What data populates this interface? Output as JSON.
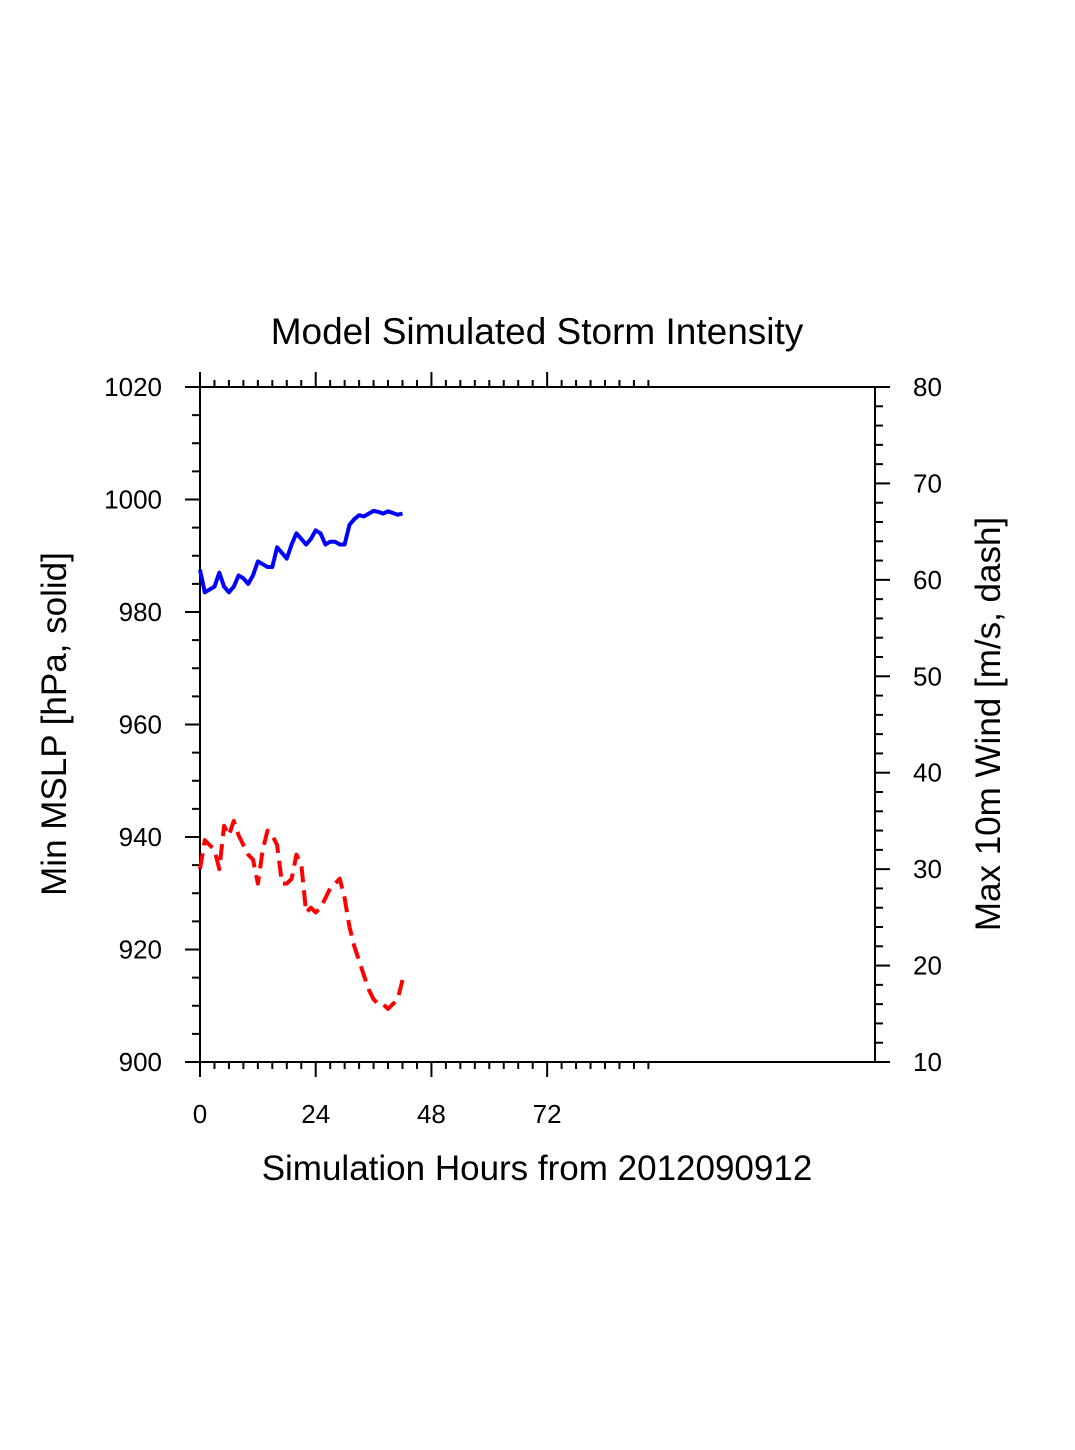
{
  "chart_data": {
    "type": "line",
    "title": "Model Simulated Storm Intensity",
    "xlabel": "Simulation Hours from 2012090912",
    "ylabel_left": "Min MSLP  [hPa, solid]",
    "ylabel_right": "Max 10m Wind  [m/s, dash]",
    "x_ticks": [
      0,
      24,
      48,
      72
    ],
    "xlim": [
      0,
      140
    ],
    "ylim_left": [
      900,
      1020
    ],
    "ylim_right": [
      10,
      80
    ],
    "y_ticks_left": [
      900,
      920,
      940,
      960,
      980,
      1000,
      1020
    ],
    "y_ticks_right": [
      10,
      20,
      30,
      40,
      50,
      60,
      70,
      80
    ],
    "grid": false,
    "series": [
      {
        "axis": "left",
        "style": "solid",
        "color": "#0000ff",
        "x": [
          0,
          1,
          2,
          3,
          4,
          5,
          6,
          7,
          8,
          9,
          10,
          11,
          12,
          13,
          14,
          15,
          16,
          17,
          18,
          19,
          20,
          21,
          22,
          23,
          24,
          25,
          26,
          27,
          28,
          29,
          30,
          31,
          32,
          33,
          34,
          35,
          36,
          37,
          38,
          39,
          40,
          41,
          42
        ],
        "values": [
          987.5,
          983.5,
          984,
          984.5,
          987,
          984.5,
          983.5,
          984.5,
          986.5,
          986,
          985,
          986.5,
          989,
          988.5,
          988,
          988,
          991.5,
          990.5,
          989.5,
          992,
          994,
          993,
          992,
          993,
          994.5,
          994,
          992,
          992.5,
          992.5,
          992,
          992,
          995.5,
          996.5,
          997.2,
          997,
          997.5,
          998,
          997.8,
          997.5,
          997.9,
          997.6,
          997.3,
          997.5
        ]
      },
      {
        "axis": "right",
        "style": "dash",
        "color": "#ff0000",
        "x": [
          0,
          1,
          2,
          3,
          4,
          5,
          6,
          7,
          8,
          9,
          10,
          11,
          12,
          13,
          14,
          15,
          16,
          17,
          18,
          19,
          20,
          21,
          22,
          23,
          24,
          25,
          26,
          27,
          28,
          29,
          30,
          31,
          32,
          33,
          34,
          35,
          36,
          37,
          38,
          39,
          40,
          41,
          42
        ],
        "values": [
          30,
          33,
          32.5,
          32,
          30,
          34.5,
          33.5,
          35,
          33.5,
          32.5,
          31.5,
          31,
          28.5,
          32,
          34,
          33.5,
          32.5,
          28.5,
          28.5,
          29,
          31.5,
          30.5,
          25.5,
          26,
          25.5,
          26,
          27,
          28,
          28.5,
          29,
          27,
          24,
          22,
          20.5,
          19,
          17.5,
          16.5,
          16,
          16,
          15.5,
          16,
          16.5,
          18.5
        ]
      }
    ]
  }
}
